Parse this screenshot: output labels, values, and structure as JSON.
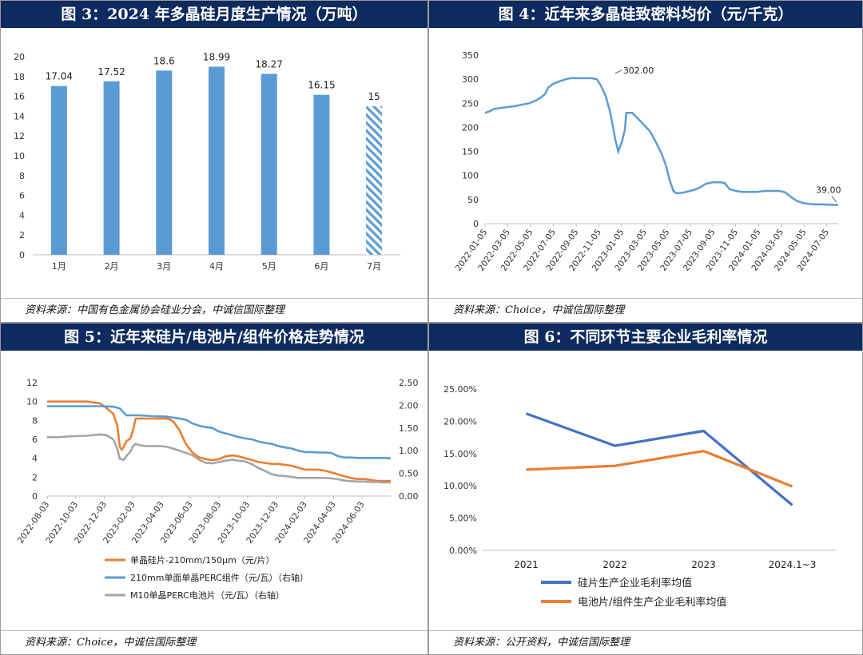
{
  "charts": [
    {
      "title": "图 3：2024 年多晶硅月度生产情况（万吨）",
      "source": "资料来源：中国有色金属协会硅业分会，中诚信国际整理"
    },
    {
      "title": "图 4：近年来多晶硅致密料均价（元/千克）",
      "source": "资料来源：Choice，中诚信国际整理"
    },
    {
      "title": "图 5：近年来硅片/电池片/组件价格走势情况",
      "source": "资料来源：Choice，中诚信国际整理"
    },
    {
      "title": "图 6：不同环节主要企业毛利率情况",
      "source": "资料来源：公开资料，中诚信国际整理"
    }
  ],
  "chart_data": [
    {
      "type": "bar",
      "categories": [
        "1月",
        "2月",
        "3月",
        "4月",
        "5月",
        "6月",
        "7月"
      ],
      "values": [
        17.04,
        17.52,
        18.6,
        18.99,
        18.27,
        16.15,
        15
      ],
      "data_labels": [
        "17.04",
        "17.52",
        "18.6",
        "18.99",
        "18.27",
        "16.15",
        "15"
      ],
      "hatched": [
        false,
        false,
        false,
        false,
        false,
        false,
        true
      ],
      "ylim": [
        0,
        20
      ],
      "yticks": [
        "0",
        "2",
        "4",
        "6",
        "8",
        "10",
        "12",
        "14",
        "16",
        "18",
        "20"
      ],
      "color": "#5b9bd5"
    },
    {
      "type": "line",
      "x_ticks": [
        "2022-01-05",
        "2022-03-05",
        "2022-05-05",
        "2022-07-05",
        "2022-09-05",
        "2022-11-05",
        "2023-01-05",
        "2023-03-05",
        "2023-05-05",
        "2023-07-05",
        "2023-09-05",
        "2023-11-05",
        "2024-01-05",
        "2024-03-05",
        "2024-05-05",
        "2024-07-05"
      ],
      "ylim": [
        0,
        350
      ],
      "yticks": [
        "0",
        "50",
        "100",
        "150",
        "200",
        "250",
        "300",
        "350"
      ],
      "series": [
        {
          "color": "#5b9bd5",
          "points": [
            [
              0,
              230
            ],
            [
              0.3,
              233
            ],
            [
              0.6,
              238
            ],
            [
              1,
              240
            ],
            [
              1.5,
              242
            ],
            [
              2,
              244
            ],
            [
              2.5,
              247
            ],
            [
              3,
              250
            ],
            [
              3.4,
              255
            ],
            [
              3.8,
              262
            ],
            [
              4.1,
              270
            ],
            [
              4.3,
              283
            ],
            [
              4.6,
              290
            ],
            [
              5,
              295
            ],
            [
              5.4,
              299
            ],
            [
              5.8,
              302
            ],
            [
              6.5,
              302
            ],
            [
              7.2,
              302
            ],
            [
              7.6,
              300
            ],
            [
              7.9,
              285
            ],
            [
              8.2,
              265
            ],
            [
              8.5,
              232
            ],
            [
              8.7,
              200
            ],
            [
              8.85,
              175
            ],
            [
              9.05,
              150
            ],
            [
              9.3,
              170
            ],
            [
              9.5,
              195
            ],
            [
              9.6,
              230
            ],
            [
              10,
              230
            ],
            [
              10.4,
              218
            ],
            [
              10.8,
              205
            ],
            [
              11.2,
              192
            ],
            [
              11.6,
              170
            ],
            [
              12.0,
              145
            ],
            [
              12.3,
              120
            ],
            [
              12.55,
              90
            ],
            [
              12.8,
              68
            ],
            [
              13.0,
              63
            ],
            [
              13.4,
              64
            ],
            [
              13.8,
              67
            ],
            [
              14.2,
              70
            ],
            [
              14.6,
              75
            ],
            [
              15,
              83
            ],
            [
              15.5,
              86
            ],
            [
              16,
              86
            ],
            [
              16.3,
              84
            ],
            [
              16.6,
              72
            ],
            [
              17,
              68
            ],
            [
              17.5,
              66
            ],
            [
              18,
              66
            ],
            [
              18.5,
              66
            ],
            [
              19,
              68
            ],
            [
              19.5,
              68
            ],
            [
              20,
              68
            ],
            [
              20.4,
              65
            ],
            [
              20.8,
              55
            ],
            [
              21.2,
              47
            ],
            [
              21.6,
              43
            ],
            [
              22,
              41
            ],
            [
              22.5,
              40
            ],
            [
              23,
              40
            ],
            [
              23.5,
              39
            ],
            [
              24,
              39
            ]
          ],
          "annotations": [
            {
              "x": 5.8,
              "y": 302,
              "label": "302.00"
            },
            {
              "x": 24,
              "y": 39,
              "label": "39.00"
            }
          ]
        }
      ]
    },
    {
      "type": "line",
      "x_ticks": [
        "2022-08-03",
        "2022-10-03",
        "2022-12-03",
        "2023-02-03",
        "2023-04-03",
        "2023-06-03",
        "2023-08-03",
        "2023-10-03",
        "2023-12-03",
        "2024-02-03",
        "2024-04-03",
        "2024-06-03"
      ],
      "ylim_left": [
        0,
        12
      ],
      "yticks_left": [
        "0",
        "2",
        "4",
        "6",
        "8",
        "10",
        "12"
      ],
      "ylim_right": [
        0,
        2.5
      ],
      "yticks_right": [
        "0.00",
        "0.50",
        "1.00",
        "1.50",
        "2.00",
        "2.50"
      ],
      "series": [
        {
          "name": "单晶硅片-210mm/150μm（元/片）",
          "axis": "left",
          "color": "#ed7d31",
          "points": [
            [
              0,
              10
            ],
            [
              1,
              10
            ],
            [
              2,
              10
            ],
            [
              3,
              10
            ],
            [
              4,
              9.8
            ],
            [
              4.5,
              9.3
            ],
            [
              5,
              8.7
            ],
            [
              5.3,
              7.5
            ],
            [
              5.5,
              5.2
            ],
            [
              5.65,
              4.9
            ],
            [
              5.8,
              5.2
            ],
            [
              6.0,
              5.8
            ],
            [
              6.3,
              6.1
            ],
            [
              6.5,
              7.0
            ],
            [
              6.7,
              8.2
            ],
            [
              7,
              8.2
            ],
            [
              7.5,
              8.2
            ],
            [
              8,
              8.2
            ],
            [
              8.5,
              8.2
            ],
            [
              9,
              8.2
            ],
            [
              9.3,
              8.1
            ],
            [
              9.6,
              7.8
            ],
            [
              10,
              7.0
            ],
            [
              10.5,
              5.5
            ],
            [
              11,
              4.6
            ],
            [
              11.5,
              4.1
            ],
            [
              12,
              3.9
            ],
            [
              12.5,
              3.8
            ],
            [
              13,
              3.9
            ],
            [
              13.5,
              4.2
            ],
            [
              14,
              4.3
            ],
            [
              14.5,
              4.2
            ],
            [
              15,
              4.0
            ],
            [
              15.5,
              3.8
            ],
            [
              16,
              3.6
            ],
            [
              16.5,
              3.5
            ],
            [
              17,
              3.4
            ],
            [
              17.5,
              3.4
            ],
            [
              18,
              3.3
            ],
            [
              18.5,
              3.2
            ],
            [
              19,
              3.0
            ],
            [
              19.5,
              2.8
            ],
            [
              20,
              2.8
            ],
            [
              20.5,
              2.8
            ],
            [
              21,
              2.7
            ],
            [
              21.5,
              2.5
            ],
            [
              22,
              2.3
            ],
            [
              22.5,
              2.1
            ],
            [
              23,
              1.9
            ],
            [
              23.5,
              1.8
            ],
            [
              24,
              1.8
            ],
            [
              24.5,
              1.7
            ],
            [
              25,
              1.6
            ],
            [
              25.5,
              1.6
            ],
            [
              26,
              1.6
            ]
          ]
        },
        {
          "name": "210mm单面单晶PERC组件（元/瓦）（右轴）",
          "axis": "right",
          "color": "#5b9bd5",
          "points": [
            [
              0,
              1.98
            ],
            [
              1,
              1.98
            ],
            [
              2,
              1.98
            ],
            [
              3,
              1.98
            ],
            [
              4,
              1.98
            ],
            [
              5,
              1.97
            ],
            [
              5.5,
              1.93
            ],
            [
              6,
              1.78
            ],
            [
              6.5,
              1.78
            ],
            [
              7,
              1.78
            ],
            [
              8,
              1.76
            ],
            [
              9,
              1.75
            ],
            [
              10,
              1.71
            ],
            [
              10.5,
              1.68
            ],
            [
              11,
              1.6
            ],
            [
              11.5,
              1.55
            ],
            [
              12,
              1.52
            ],
            [
              12.5,
              1.5
            ],
            [
              13,
              1.42
            ],
            [
              13.5,
              1.38
            ],
            [
              14,
              1.34
            ],
            [
              14.5,
              1.3
            ],
            [
              15,
              1.27
            ],
            [
              15.5,
              1.25
            ],
            [
              16,
              1.2
            ],
            [
              16.5,
              1.17
            ],
            [
              17,
              1.15
            ],
            [
              17.5,
              1.1
            ],
            [
              18,
              1.07
            ],
            [
              18.5,
              1.05
            ],
            [
              19,
              1.0
            ],
            [
              19.5,
              0.97
            ],
            [
              20,
              0.97
            ],
            [
              20.5,
              0.96
            ],
            [
              21,
              0.96
            ],
            [
              21.5,
              0.95
            ],
            [
              22,
              0.88
            ],
            [
              22.5,
              0.85
            ],
            [
              23,
              0.85
            ],
            [
              23.5,
              0.84
            ],
            [
              24,
              0.84
            ],
            [
              24.5,
              0.84
            ],
            [
              25,
              0.84
            ],
            [
              25.5,
              0.84
            ],
            [
              26,
              0.83
            ]
          ]
        },
        {
          "name": "M10单晶PERC电池片（元/瓦）（右轴）",
          "axis": "right",
          "color": "#a5a5a5",
          "points": [
            [
              0,
              1.3
            ],
            [
              1,
              1.3
            ],
            [
              2,
              1.32
            ],
            [
              3,
              1.33
            ],
            [
              4,
              1.36
            ],
            [
              4.5,
              1.34
            ],
            [
              5,
              1.25
            ],
            [
              5.3,
              1.05
            ],
            [
              5.5,
              0.82
            ],
            [
              5.8,
              0.8
            ],
            [
              6.0,
              0.88
            ],
            [
              6.3,
              0.98
            ],
            [
              6.5,
              1.1
            ],
            [
              6.7,
              1.15
            ],
            [
              7,
              1.12
            ],
            [
              7.5,
              1.1
            ],
            [
              8,
              1.1
            ],
            [
              8.5,
              1.1
            ],
            [
              9,
              1.09
            ],
            [
              9.5,
              1.05
            ],
            [
              10,
              1.0
            ],
            [
              10.5,
              0.95
            ],
            [
              11,
              0.9
            ],
            [
              11.5,
              0.8
            ],
            [
              12,
              0.73
            ],
            [
              12.5,
              0.72
            ],
            [
              13,
              0.75
            ],
            [
              13.5,
              0.78
            ],
            [
              14,
              0.8
            ],
            [
              14.5,
              0.78
            ],
            [
              15,
              0.76
            ],
            [
              15.5,
              0.7
            ],
            [
              16,
              0.62
            ],
            [
              16.5,
              0.55
            ],
            [
              17,
              0.48
            ],
            [
              17.5,
              0.45
            ],
            [
              18,
              0.44
            ],
            [
              18.5,
              0.42
            ],
            [
              19,
              0.4
            ],
            [
              19.5,
              0.4
            ],
            [
              20,
              0.4
            ],
            [
              20.5,
              0.4
            ],
            [
              21,
              0.4
            ],
            [
              21.5,
              0.39
            ],
            [
              22,
              0.37
            ],
            [
              22.5,
              0.34
            ],
            [
              23,
              0.33
            ],
            [
              23.5,
              0.32
            ],
            [
              24,
              0.32
            ],
            [
              24.5,
              0.31
            ],
            [
              25,
              0.31
            ],
            [
              25.5,
              0.3
            ],
            [
              26,
              0.3
            ]
          ]
        }
      ]
    },
    {
      "type": "line",
      "categories": [
        "2021",
        "2022",
        "2023",
        "2024.1~3"
      ],
      "ylim": [
        0,
        0.25
      ],
      "yticks": [
        "0.00%",
        "5.00%",
        "10.00%",
        "15.00%",
        "20.00%",
        "25.00%"
      ],
      "series": [
        {
          "name": "硅片生产企业毛利率均值",
          "color": "#4472c4",
          "values": [
            0.212,
            0.162,
            0.185,
            0.07
          ]
        },
        {
          "name": "电池片/组件生产企业毛利率均值",
          "color": "#ed7d31",
          "values": [
            0.125,
            0.131,
            0.154,
            0.099
          ]
        }
      ]
    }
  ]
}
